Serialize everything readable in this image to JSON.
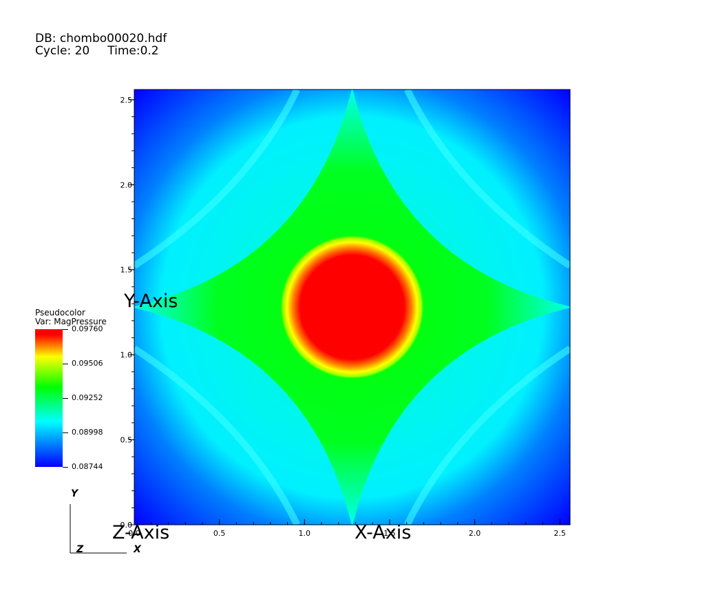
{
  "header": {
    "db_label": "DB: chombo00020.hdf",
    "cycle_label": "Cycle: 20",
    "time_label": "Time:0.2"
  },
  "legend": {
    "plot_type": "Pseudocolor",
    "variable_label": "Var: MagPressure",
    "tick_labels": [
      "0.09760",
      "0.09506",
      "0.09252",
      "0.08998",
      "0.08744"
    ]
  },
  "triad": {
    "y": "Y",
    "z": "Z",
    "x": "X"
  },
  "chart_data": {
    "type": "heatmap",
    "title": "",
    "xlabel": "X-Axis",
    "ylabel": "Y-Axis",
    "zlabel": "Z-Axis",
    "xlim": [
      0.0,
      2.56
    ],
    "ylim": [
      0.0,
      2.56
    ],
    "x_ticks": [
      0.0,
      0.5,
      1.0,
      1.5,
      2.0,
      2.5
    ],
    "y_ticks": [
      0.0,
      0.5,
      1.0,
      1.5,
      2.0,
      2.5
    ],
    "x_tick_labels": [
      "0.0",
      "0.5",
      "1.0",
      "1.5",
      "2.0",
      "2.5"
    ],
    "y_tick_labels": [
      "0.0",
      "0.5",
      "1.0",
      "1.5",
      "2.0",
      "2.5"
    ],
    "color_range": [
      0.08744,
      0.0976
    ],
    "colormap": [
      "#0000ff",
      "#00ffff",
      "#00ff00",
      "#ffff00",
      "#ff0000"
    ],
    "field_description": "Circular maximum of MagPressure near the domain center with a diamond-shaped cyan ridge and blue corners",
    "center": [
      1.28,
      1.28
    ],
    "peak_value": 0.0976,
    "min_value": 0.08744
  }
}
